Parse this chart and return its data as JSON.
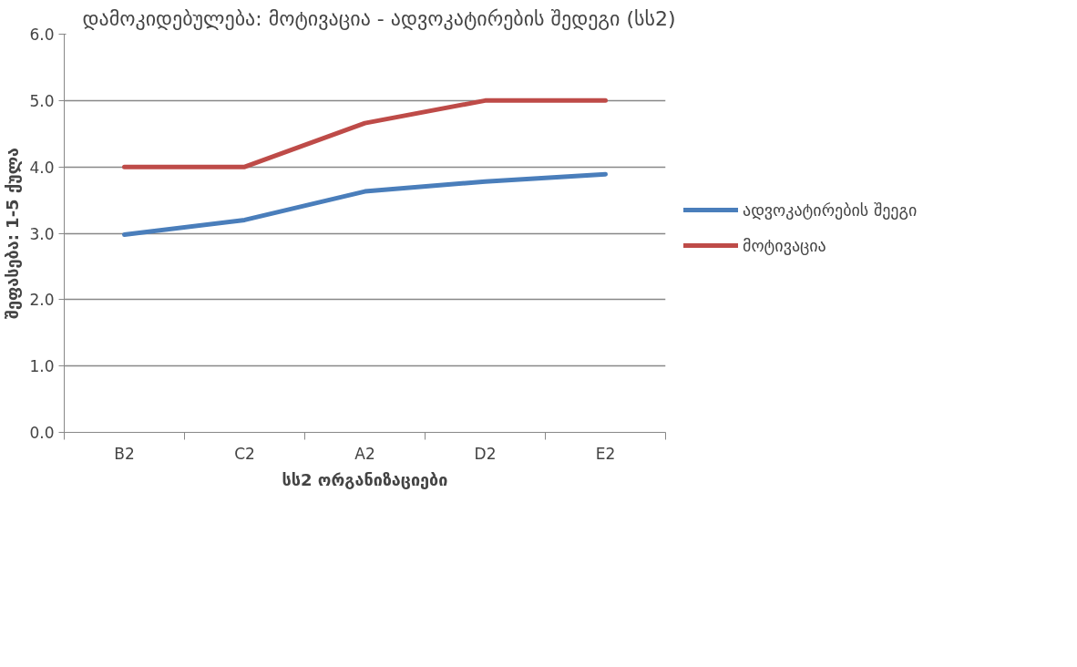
{
  "chart_data": {
    "type": "line",
    "title": "დამოკიდებულება: მოტივაცია - ადვოკატირების შედეგი (სს2)",
    "xlabel": "სს2 ორგანიზაციები",
    "ylabel": "შეფასება: 1-5 ქულა",
    "categories": [
      "B2",
      "C2",
      "A2",
      "D2",
      "E2"
    ],
    "series": [
      {
        "name": "ადვოკატირების შეეგი",
        "color": "#4a7ebb",
        "values": [
          2.98,
          3.2,
          3.63,
          3.78,
          3.89
        ]
      },
      {
        "name": "მოტივაცია",
        "color": "#be4b48",
        "values": [
          4.0,
          4.0,
          4.66,
          5.0,
          5.0
        ]
      }
    ],
    "ylim": [
      0,
      6
    ],
    "yticks": [
      {
        "value": 0,
        "label": "0.0"
      },
      {
        "value": 1,
        "label": "1.0"
      },
      {
        "value": 2,
        "label": "2.0"
      },
      {
        "value": 3,
        "label": "3.0"
      },
      {
        "value": 4,
        "label": "4.0"
      },
      {
        "value": 5,
        "label": "5.0"
      },
      {
        "value": 6,
        "label": "6.0"
      }
    ],
    "grid": "y",
    "legend": "right",
    "marker": "none",
    "line_style": "solid"
  }
}
